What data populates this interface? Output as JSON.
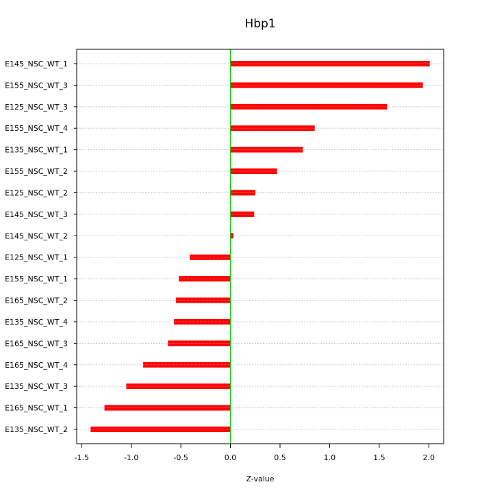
{
  "chart_data": {
    "type": "bar",
    "orientation": "horizontal",
    "title": "Hbp1",
    "xlabel": "Z-value",
    "ylabel": "",
    "xlim": [
      -1.55,
      2.15
    ],
    "xticks": [
      -1.5,
      -1.0,
      -0.5,
      0.0,
      0.5,
      1.0,
      1.5,
      2.0
    ],
    "xtick_labels": [
      "-1.5",
      "-1.0",
      "-0.5",
      "0.0",
      "0.5",
      "1.0",
      "1.5",
      "2.0"
    ],
    "grid": "horizontal dotted",
    "zero_line": true,
    "categories": [
      "E145_NSC_WT_1",
      "E155_NSC_WT_3",
      "E125_NSC_WT_3",
      "E155_NSC_WT_4",
      "E135_NSC_WT_1",
      "E155_NSC_WT_2",
      "E125_NSC_WT_2",
      "E145_NSC_WT_3",
      "E145_NSC_WT_2",
      "E125_NSC_WT_1",
      "E155_NSC_WT_1",
      "E165_NSC_WT_2",
      "E135_NSC_WT_4",
      "E165_NSC_WT_3",
      "E165_NSC_WT_4",
      "E135_NSC_WT_3",
      "E165_NSC_WT_1",
      "E135_NSC_WT_2"
    ],
    "values": [
      2.01,
      1.94,
      1.58,
      0.85,
      0.73,
      0.47,
      0.25,
      0.24,
      0.03,
      -0.41,
      -0.52,
      -0.55,
      -0.57,
      -0.63,
      -0.88,
      -1.05,
      -1.27,
      -1.41
    ],
    "colors": {
      "bar": "#ff0000",
      "bar_highlight": "#ff6a6a",
      "zero_line": "#00cc00",
      "grid": "#c8c8c8",
      "axis": "#000000"
    }
  }
}
